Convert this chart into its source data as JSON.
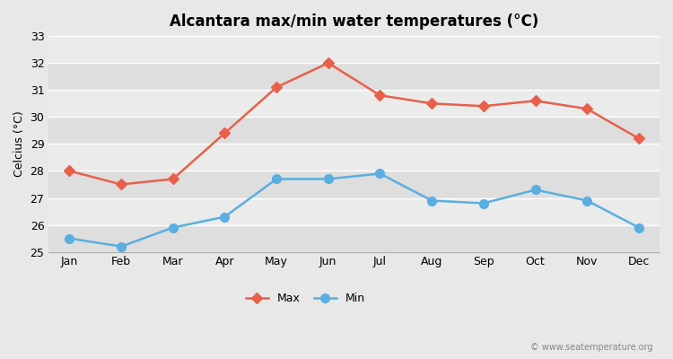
{
  "title": "Alcantara max/min water temperatures (°C)",
  "xlabel": "",
  "ylabel": "Celcius (°C)",
  "months": [
    "Jan",
    "Feb",
    "Mar",
    "Apr",
    "May",
    "Jun",
    "Jul",
    "Aug",
    "Sep",
    "Oct",
    "Nov",
    "Dec"
  ],
  "max_values": [
    28.0,
    27.5,
    27.7,
    29.4,
    31.1,
    32.0,
    30.8,
    30.5,
    30.4,
    30.6,
    30.3,
    29.2
  ],
  "min_values": [
    25.5,
    25.2,
    25.9,
    26.3,
    27.7,
    27.7,
    27.9,
    26.9,
    26.8,
    27.3,
    26.9,
    25.9
  ],
  "max_color": "#e8604c",
  "min_color": "#5aafe0",
  "background_color": "#e8e8e8",
  "band_light": "#ebebeb",
  "band_dark": "#dedede",
  "ylim": [
    25.0,
    33.0
  ],
  "yticks": [
    25,
    26,
    27,
    28,
    29,
    30,
    31,
    32,
    33
  ],
  "watermark": "© www.seatemperature.org",
  "legend_max": "Max",
  "legend_min": "Min",
  "title_fontsize": 12,
  "label_fontsize": 9,
  "tick_fontsize": 9,
  "max_marker": "D",
  "min_marker": "o",
  "max_markersize": 6,
  "min_markersize": 7,
  "linewidth": 1.8
}
